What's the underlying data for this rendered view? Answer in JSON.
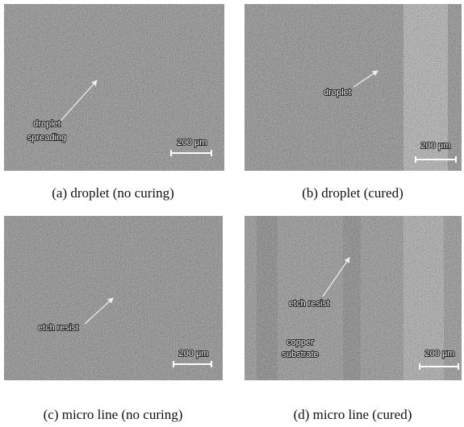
{
  "panels": [
    {
      "caption": "(a) droplet (no curing)",
      "labels": [
        "droplet",
        "spreading"
      ],
      "scale_bar": "200 μm"
    },
    {
      "caption": "(b) droplet (cured)",
      "labels": [
        "droplet"
      ],
      "scale_bar": "200 μm"
    },
    {
      "caption": "(c) micro line (no curing)",
      "labels": [
        "etch resist"
      ],
      "scale_bar": "200 μm"
    },
    {
      "caption": "(d) micro line (cured)",
      "labels": [
        "etch resist",
        "copper",
        "substrate"
      ],
      "scale_bar": "200 μm"
    }
  ]
}
